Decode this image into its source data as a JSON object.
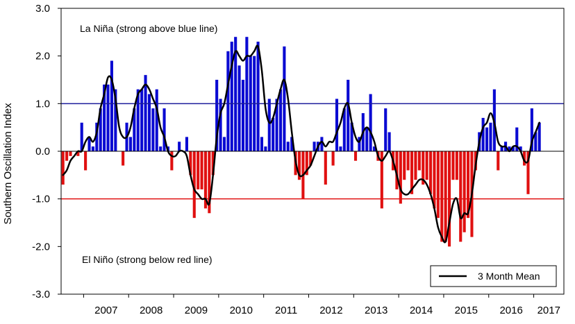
{
  "chart_data": {
    "type": "bar",
    "ylabel": "Southern Oscillation Index",
    "xlabel": "",
    "ylim": [
      -3.0,
      3.0
    ],
    "y_ticks": [
      "3.0",
      "2.0",
      "1.0",
      "0.0",
      "-1.0",
      "-2.0",
      "-3.0"
    ],
    "x_ticks": [
      "2007",
      "2008",
      "2009",
      "2010",
      "2011",
      "2012",
      "2013",
      "2014",
      "2015",
      "2016",
      "2017"
    ],
    "x_start_year": 2006.5,
    "x_end_year": 2017.67,
    "annotations": {
      "la_nina": "La Niña (strong above blue line)",
      "el_nino": "El Niño (strong below red line)"
    },
    "reference_lines": [
      {
        "y": 1.0,
        "color": "#1c1c9c"
      },
      {
        "y": -1.0,
        "color": "#e01010"
      }
    ],
    "colors": {
      "positive": "#0a0ad2",
      "negative": "#e01010",
      "mean_line": "#000000"
    },
    "grid": false,
    "legend": {
      "position": "bottom-right",
      "label": "3 Month Mean"
    },
    "series": [
      {
        "kind": "monthly_bars",
        "values": [
          -0.7,
          -0.2,
          -0.1,
          0.0,
          -0.1,
          0.6,
          -0.4,
          0.3,
          0.1,
          0.6,
          0.9,
          1.4,
          1.4,
          1.9,
          1.3,
          0.0,
          -0.3,
          0.6,
          0.3,
          0.9,
          1.3,
          1.3,
          1.6,
          1.2,
          0.9,
          1.3,
          0.1,
          0.9,
          0.1,
          -0.4,
          0.0,
          0.2,
          0.0,
          0.3,
          -0.5,
          -1.4,
          -0.8,
          -0.8,
          -1.2,
          -1.3,
          -0.5,
          1.5,
          1.1,
          0.3,
          2.1,
          2.3,
          2.4,
          1.8,
          1.5,
          2.4,
          2.0,
          2.0,
          2.3,
          0.3,
          0.1,
          1.1,
          0.7,
          1.1,
          1.3,
          2.2,
          0.2,
          0.3,
          -0.5,
          -0.6,
          -1.0,
          -0.5,
          -0.3,
          0.2,
          0.2,
          0.3,
          -0.7,
          0.0,
          -0.3,
          1.1,
          0.1,
          0.9,
          1.5,
          0.6,
          -0.2,
          0.3,
          0.8,
          0.5,
          1.2,
          0.1,
          -0.2,
          -1.2,
          0.9,
          0.4,
          -0.4,
          -0.8,
          -1.1,
          -0.6,
          -0.4,
          -0.9,
          -0.6,
          -0.4,
          -0.7,
          -0.6,
          -0.9,
          -1.2,
          -1.4,
          -1.9,
          -1.9,
          -2.0,
          -0.6,
          -0.6,
          -1.9,
          -1.7,
          -1.4,
          -1.8,
          -0.4,
          0.4,
          0.7,
          0.5,
          0.6,
          1.3,
          -0.4,
          0.1,
          0.2,
          0.1,
          0.1,
          0.5,
          0.1,
          -0.3,
          -0.9,
          0.9,
          0.4,
          0.6
        ]
      },
      {
        "name": "3 Month Mean",
        "kind": "line",
        "values": [
          -0.5,
          -0.4,
          -0.2,
          -0.1,
          0.0,
          0.0,
          0.2,
          0.3,
          0.2,
          0.4,
          0.9,
          1.2,
          1.55,
          1.5,
          1.1,
          0.5,
          0.3,
          0.3,
          0.5,
          0.9,
          1.2,
          1.3,
          1.4,
          1.3,
          1.1,
          0.9,
          0.5,
          0.3,
          0.0,
          -0.1,
          -0.1,
          0.0,
          0.0,
          -0.1,
          -0.5,
          -0.8,
          -0.9,
          -1.0,
          -1.0,
          -1.1,
          -0.5,
          0.3,
          0.8,
          1.0,
          1.4,
          1.8,
          2.1,
          2.0,
          1.9,
          2.0,
          2.0,
          2.1,
          2.2,
          1.7,
          0.9,
          0.6,
          0.7,
          1.0,
          1.3,
          1.5,
          1.1,
          0.4,
          -0.2,
          -0.5,
          -0.5,
          -0.4,
          -0.3,
          -0.1,
          0.1,
          0.2,
          0.1,
          0.2,
          0.2,
          0.4,
          0.6,
          0.9,
          1.0,
          0.6,
          0.3,
          0.2,
          0.4,
          0.5,
          0.4,
          0.2,
          -0.1,
          -0.2,
          -0.1,
          0.0,
          -0.2,
          -0.5,
          -0.8,
          -0.9,
          -0.9,
          -0.8,
          -0.7,
          -0.6,
          -0.6,
          -0.7,
          -0.9,
          -1.2,
          -1.6,
          -1.8,
          -1.9,
          -1.5,
          -1.1,
          -1.0,
          -1.4,
          -1.3,
          -1.3,
          -0.9,
          -0.3,
          0.2,
          0.5,
          0.6,
          0.8,
          0.6,
          0.2,
          0.1,
          0.1,
          0.0,
          0.1,
          0.1,
          0.0,
          -0.2,
          -0.2,
          0.2,
          0.4,
          0.6
        ]
      }
    ]
  }
}
